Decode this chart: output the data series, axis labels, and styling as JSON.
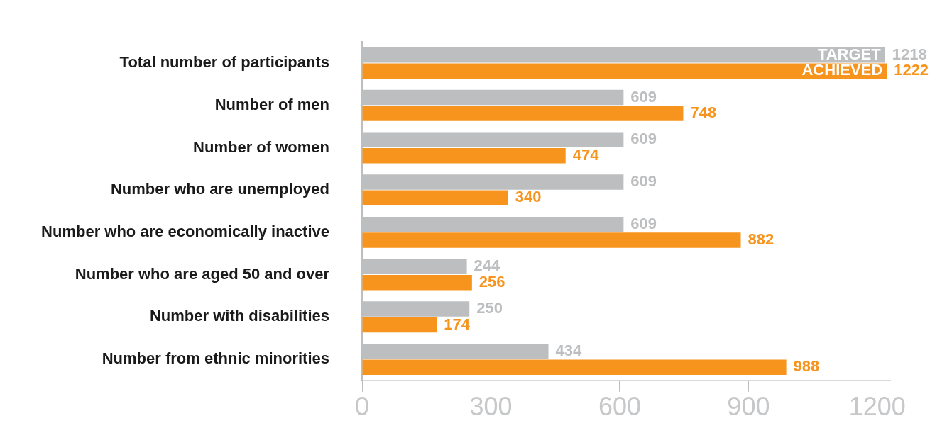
{
  "chart_data": {
    "type": "bar",
    "orientation": "horizontal",
    "categories": [
      "Total number of participants",
      "Number of men",
      "Number of women",
      "Number who are unemployed",
      "Number who are economically inactive",
      "Number who are aged 50 and over",
      "Number with disabilities",
      "Number from ethnic minorities"
    ],
    "series": [
      {
        "name": "TARGET",
        "color": "#bcbec0",
        "values": [
          1218,
          609,
          609,
          609,
          609,
          244,
          250,
          434
        ]
      },
      {
        "name": "ACHIEVED",
        "color": "#f7941d",
        "values": [
          1222,
          748,
          474,
          340,
          882,
          256,
          174,
          988
        ]
      }
    ],
    "xlim": [
      0,
      1230
    ],
    "xticks": [
      0,
      300,
      600,
      900,
      1200
    ],
    "grid": false,
    "legend": false,
    "data_labels": true
  }
}
